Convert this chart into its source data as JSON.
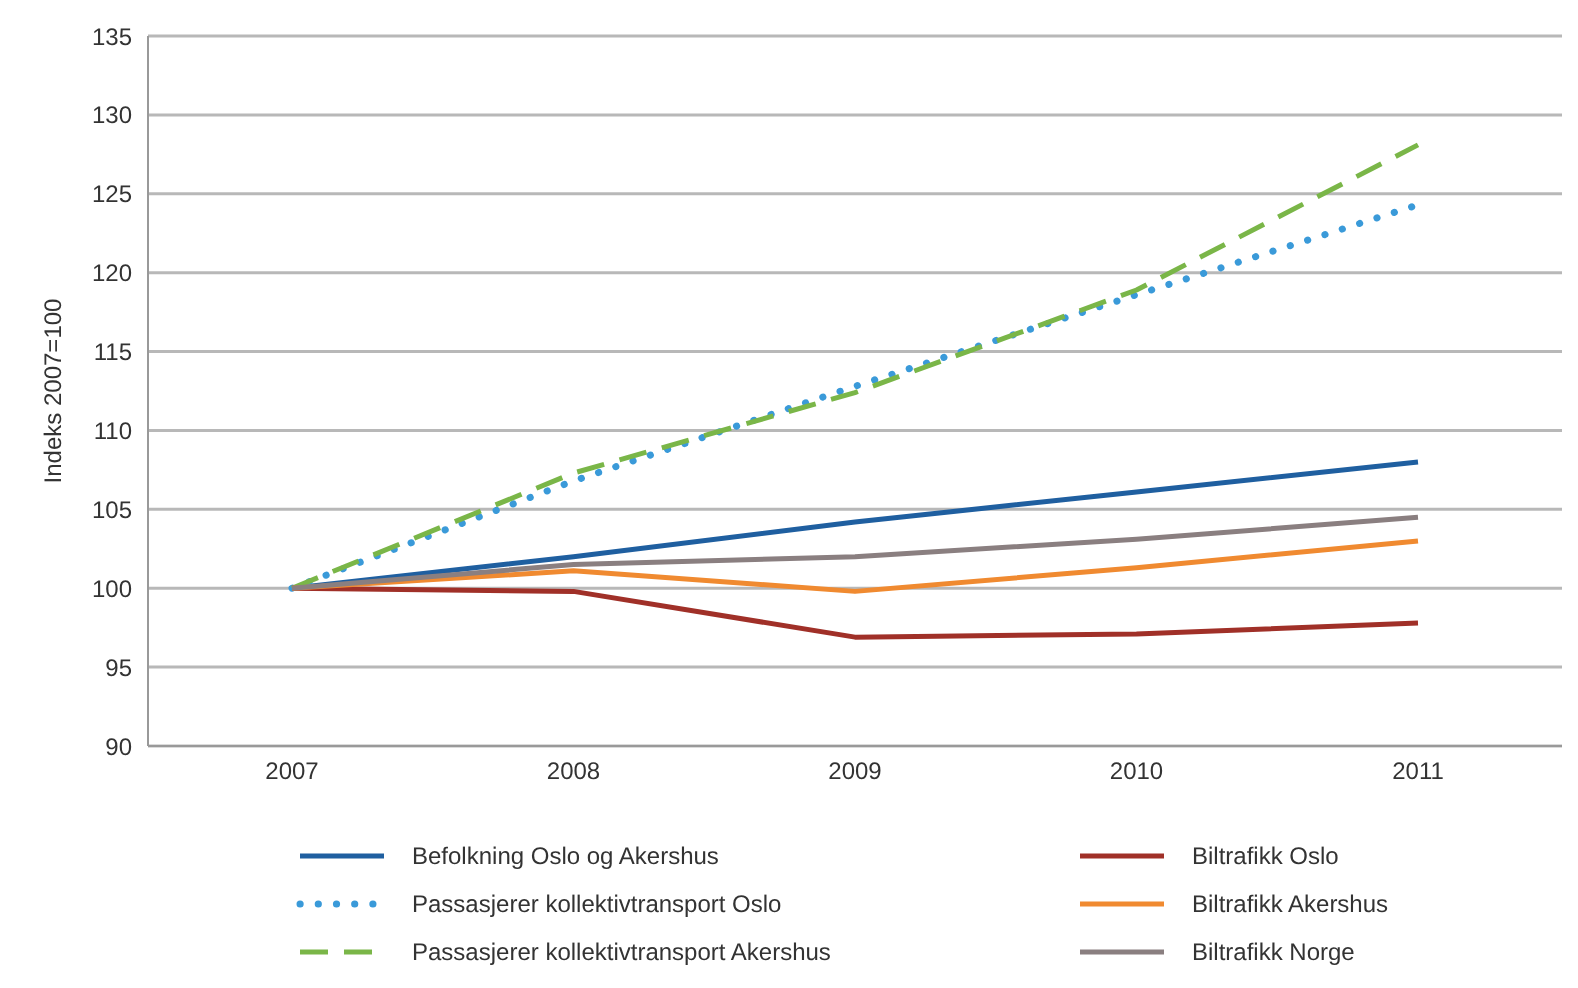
{
  "chart_data": {
    "type": "line",
    "ylabel": "Indeks 2007=100",
    "categories": [
      "2007",
      "2008",
      "2009",
      "2010",
      "2011"
    ],
    "ylim": [
      90,
      135
    ],
    "yticks": [
      90,
      95,
      100,
      105,
      110,
      115,
      120,
      125,
      130,
      135
    ],
    "grid": "y",
    "legend": "bottom",
    "marker": "none",
    "series": [
      {
        "name": "Befolkning Oslo og Akershus",
        "color": "#1f5fa0",
        "line_style": "solid",
        "values": [
          100,
          102,
          104.2,
          106.1,
          108
        ]
      },
      {
        "name": "Passasjerer kollektivtransport Oslo",
        "color": "#3a9ad9",
        "line_style": "dotted",
        "values": [
          100,
          106.8,
          112.8,
          118.6,
          124.3
        ]
      },
      {
        "name": "Passasjerer kollektivtransport Akershus",
        "color": "#7ab648",
        "line_style": "dashed",
        "values": [
          100,
          107.3,
          112.4,
          118.9,
          128.1
        ]
      },
      {
        "name": "Biltrafikk Oslo",
        "color": "#a03028",
        "line_style": "solid",
        "values": [
          100,
          99.8,
          96.9,
          97.1,
          97.8
        ]
      },
      {
        "name": "Biltrafikk Akershus",
        "color": "#f08a30",
        "line_style": "solid",
        "values": [
          100,
          101.1,
          99.8,
          101.3,
          103
        ]
      },
      {
        "name": "Biltrafikk Norge",
        "color": "#8a7f80",
        "line_style": "solid",
        "values": [
          100,
          101.5,
          102,
          103.1,
          104.5
        ]
      }
    ]
  }
}
